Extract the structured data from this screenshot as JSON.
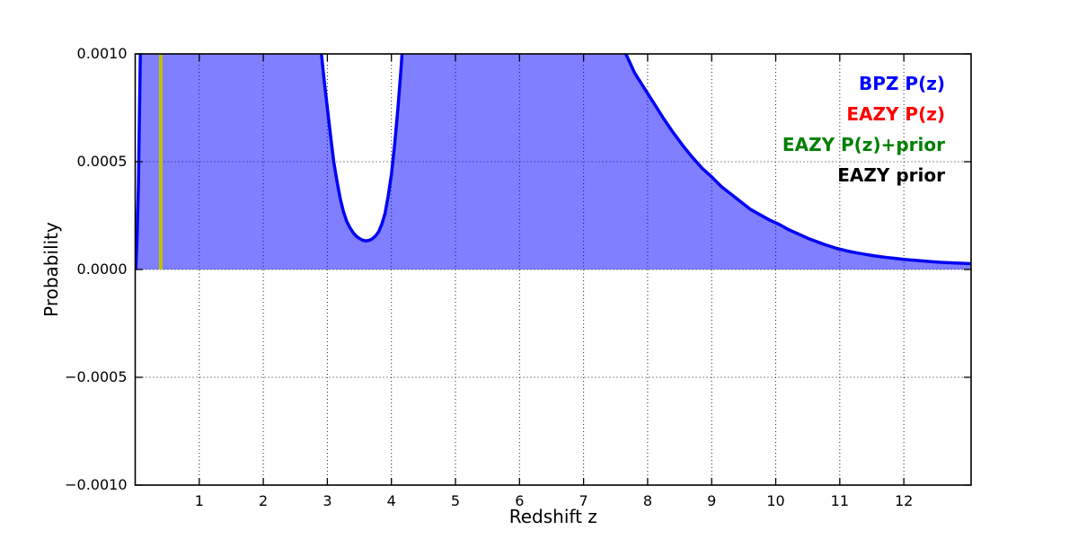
{
  "chart_data": {
    "type": "area",
    "title": "",
    "xlabel": "Redshift z",
    "ylabel": "Probability",
    "xlim": [
      0,
      13.05
    ],
    "ylim": [
      -0.001,
      0.001
    ],
    "grid": true,
    "x_tick_values": [
      1,
      2,
      3,
      4,
      5,
      6,
      7,
      8,
      9,
      10,
      11,
      12
    ],
    "x_tick_labels": [
      "1",
      "2",
      "3",
      "4",
      "5",
      "6",
      "7",
      "8",
      "9",
      "10",
      "11",
      "12"
    ],
    "y_tick_values": [
      0.001,
      0.0005,
      0.0,
      -0.0005,
      -0.001
    ],
    "y_tick_labels": [
      "0.0010",
      "0.0005",
      "0.0000",
      "−0.0005",
      "−0.0010"
    ],
    "legend_position": "upper right",
    "legend": [
      {
        "label": "BPZ P(z)",
        "color": "#0000ff"
      },
      {
        "label": "EAZY P(z)",
        "color": "#ff0000"
      },
      {
        "label": "EAZY P(z)+prior",
        "color": "#008000"
      },
      {
        "label": "EAZY prior",
        "color": "#000000"
      }
    ],
    "series": [
      {
        "name": "BPZ P(z)",
        "line_color": "#0202f2",
        "fill_color": "rgba(0,0,255,0.5)",
        "baseline": 0.0,
        "clipped_at_top": true,
        "points": [
          [
            0.01,
            0.0
          ],
          [
            0.03,
            0.00015
          ],
          [
            0.05,
            0.0004
          ],
          [
            0.07,
            0.0008
          ],
          [
            0.1,
            0.0014
          ],
          [
            0.3,
            0.0025
          ],
          [
            2.55,
            0.0025
          ],
          [
            2.7,
            0.0018
          ],
          [
            2.8,
            0.0014
          ],
          [
            2.85,
            0.00115
          ],
          [
            2.9,
            0.00102
          ],
          [
            2.95,
            0.00088
          ],
          [
            3.0,
            0.00075
          ],
          [
            3.05,
            0.00062
          ],
          [
            3.1,
            0.0005
          ],
          [
            3.15,
            0.00041
          ],
          [
            3.2,
            0.00033
          ],
          [
            3.25,
            0.00027
          ],
          [
            3.3,
            0.000225
          ],
          [
            3.35,
            0.000195
          ],
          [
            3.4,
            0.000172
          ],
          [
            3.45,
            0.000155
          ],
          [
            3.5,
            0.000144
          ],
          [
            3.55,
            0.000136
          ],
          [
            3.6,
            0.000133
          ],
          [
            3.65,
            0.000135
          ],
          [
            3.7,
            0.000142
          ],
          [
            3.75,
            0.000155
          ],
          [
            3.8,
            0.000175
          ],
          [
            3.85,
            0.00021
          ],
          [
            3.9,
            0.00026
          ],
          [
            3.95,
            0.00034
          ],
          [
            4.0,
            0.00044
          ],
          [
            4.05,
            0.00058
          ],
          [
            4.1,
            0.00074
          ],
          [
            4.15,
            0.00093
          ],
          [
            4.2,
            0.00115
          ],
          [
            4.28,
            0.0016
          ],
          [
            4.45,
            0.0025
          ],
          [
            7.3,
            0.0025
          ],
          [
            7.45,
            0.0016
          ],
          [
            7.55,
            0.00125
          ],
          [
            7.66,
            0.001
          ],
          [
            7.8,
            0.00091
          ],
          [
            7.95,
            0.00084
          ],
          [
            8.1,
            0.00077
          ],
          [
            8.25,
            0.0007
          ],
          [
            8.4,
            0.000635
          ],
          [
            8.55,
            0.000575
          ],
          [
            8.7,
            0.00052
          ],
          [
            8.85,
            0.00047
          ],
          [
            9.0,
            0.00043
          ],
          [
            9.15,
            0.000385
          ],
          [
            9.3,
            0.00035
          ],
          [
            9.45,
            0.000315
          ],
          [
            9.6,
            0.00028
          ],
          [
            9.75,
            0.000255
          ],
          [
            9.9,
            0.00023
          ],
          [
            10.05,
            0.00021
          ],
          [
            10.2,
            0.000185
          ],
          [
            10.35,
            0.000165
          ],
          [
            10.5,
            0.000145
          ],
          [
            10.65,
            0.000128
          ],
          [
            10.8,
            0.000112
          ],
          [
            10.95,
            9.8e-05
          ],
          [
            11.1,
            8.7e-05
          ],
          [
            11.25,
            7.8e-05
          ],
          [
            11.4,
            7e-05
          ],
          [
            11.55,
            6.3e-05
          ],
          [
            11.7,
            5.7e-05
          ],
          [
            11.85,
            5.2e-05
          ],
          [
            12.0,
            4.7e-05
          ],
          [
            12.2,
            4.2e-05
          ],
          [
            12.4,
            3.7e-05
          ],
          [
            12.6,
            3.3e-05
          ],
          [
            12.8,
            3e-05
          ],
          [
            13.05,
            2.7e-05
          ]
        ]
      }
    ],
    "markers": [
      {
        "name": "vertical-marker",
        "x": 0.4,
        "y_from": 0.0,
        "y_to": 0.001,
        "color": "#bfbf00"
      }
    ],
    "gridline_y_values": [
      0.0005,
      0.0,
      -0.0005
    ],
    "frame_color": "#000000",
    "grid_style": "dotted"
  }
}
